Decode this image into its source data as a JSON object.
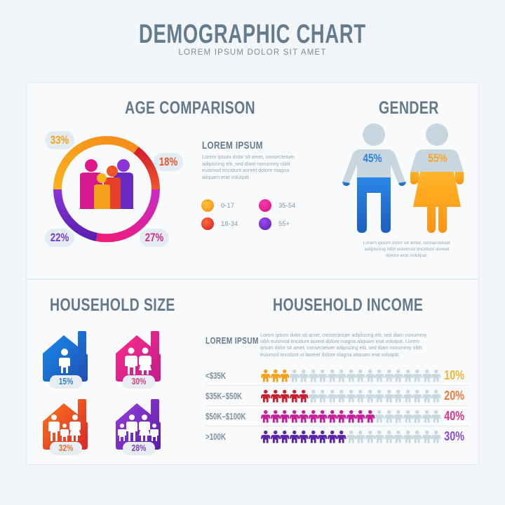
{
  "header": {
    "title": "DEMOGRAPHIC CHART",
    "subtitle": "LOREM IPSUM DOLOR SIT AMET"
  },
  "age": {
    "title": "AGE COMPARISON",
    "lorem_heading": "LOREM IPSUM",
    "lorem_lines": [
      "Lorem ipsum dolor sit amet, consectetuer",
      "adipiscing elit, sed diam nonummy nibh",
      "euismod tincidunt aoreet dolore magna",
      "aliquam erat volutpat."
    ],
    "labels": {
      "p0_17": "33%",
      "p18_34": "18%",
      "p35_54": "27%",
      "p55": "22%"
    },
    "legend": [
      {
        "label": "0-17",
        "color": "#f7a01c"
      },
      {
        "label": "18-34",
        "color": "#e0392a"
      },
      {
        "label": "35-54",
        "color": "#e0178a"
      },
      {
        "label": "55+",
        "color": "#6a2bc2"
      }
    ]
  },
  "gender": {
    "title": "GENDER",
    "male_pct": "45%",
    "female_pct": "55%",
    "male_color": "#1f74d6",
    "female_color": "#ffa41a",
    "lorem_lines": [
      "Lorem ipsum dolor sit amet, consectetuer",
      "adipiscing nibh euismod tincidunt aoreet",
      "dolore erat volutpat."
    ]
  },
  "household_size": {
    "title": "HOUSEHOLD SIZE",
    "houses": [
      {
        "pct": "15%",
        "members": 1,
        "color1": "#1a8cf0",
        "color2": "#1e4fb0",
        "text": "#3a7fbf"
      },
      {
        "pct": "30%",
        "members": 2,
        "color1": "#ff2d8a",
        "color2": "#c01c8c",
        "text": "#d63e7a"
      },
      {
        "pct": "32%",
        "members": 3,
        "color1": "#ff6a1a",
        "color2": "#d8262a",
        "text": "#e0733a"
      },
      {
        "pct": "28%",
        "members": 4,
        "color1": "#9b3fe0",
        "color2": "#5a1ca8",
        "text": "#8045b8"
      }
    ]
  },
  "household_income": {
    "title": "HOUSEHOLD INCOME",
    "lorem_heading": "LOREM IPSUM",
    "lorem_lines": [
      "Lorem ipsum dolor sit amet, consectetuer adipiscing elit, sed diam nonummy",
      "nibh euismod tincidunt aoreet dolore magna aliquam erat volutpat. Lorem",
      "ipsum dolor sit amet, consectetuer adipiscing elit, sed diam nonummy nibh",
      "euismod tincidunt ut laoreet dolore magna aliquam erat volutpat."
    ],
    "rows": [
      {
        "label": "<$35K",
        "pct": "10%",
        "filled": 3,
        "total": 19,
        "color": "#f5a21a",
        "pct_color": "#f2b632"
      },
      {
        "label": "$35K–$50K",
        "pct": "20%",
        "filled": 5,
        "total": 19,
        "color": "#c8202e",
        "pct_color": "#ee7a3a"
      },
      {
        "label": "$50K–$100K",
        "pct": "40%",
        "filled": 12,
        "total": 19,
        "color": "#c81e9c",
        "pct_color": "#e0328a"
      },
      {
        "label": ">100K",
        "pct": "30%",
        "filled": 9,
        "total": 19,
        "color": "#5a24a8",
        "pct_color": "#8a4cd0"
      }
    ],
    "empty_color": "#c8d8df"
  },
  "chart_data": [
    {
      "type": "pie",
      "title": "AGE COMPARISON",
      "categories": [
        "0-17",
        "18-34",
        "35-54",
        "55+"
      ],
      "values": [
        33,
        18,
        27,
        22
      ],
      "unit": "%",
      "colors": [
        "#f7a01c",
        "#e0392a",
        "#e0178a",
        "#6a2bc2"
      ],
      "legend_position": "right"
    },
    {
      "type": "bar",
      "title": "GENDER",
      "categories": [
        "Male",
        "Female"
      ],
      "values": [
        45,
        55
      ],
      "unit": "%"
    },
    {
      "type": "bar",
      "title": "HOUSEHOLD SIZE",
      "categories": [
        "1 person",
        "2 people",
        "3 people",
        "4 people"
      ],
      "values": [
        15,
        30,
        32,
        28
      ],
      "unit": "%"
    },
    {
      "type": "bar",
      "title": "HOUSEHOLD INCOME",
      "categories": [
        "<$35K",
        "$35K–$50K",
        "$50K–$100K",
        ">100K"
      ],
      "values": [
        10,
        20,
        40,
        30
      ],
      "unit": "%",
      "pictogram_filled": [
        3,
        5,
        12,
        9
      ],
      "pictogram_total": 19
    }
  ]
}
